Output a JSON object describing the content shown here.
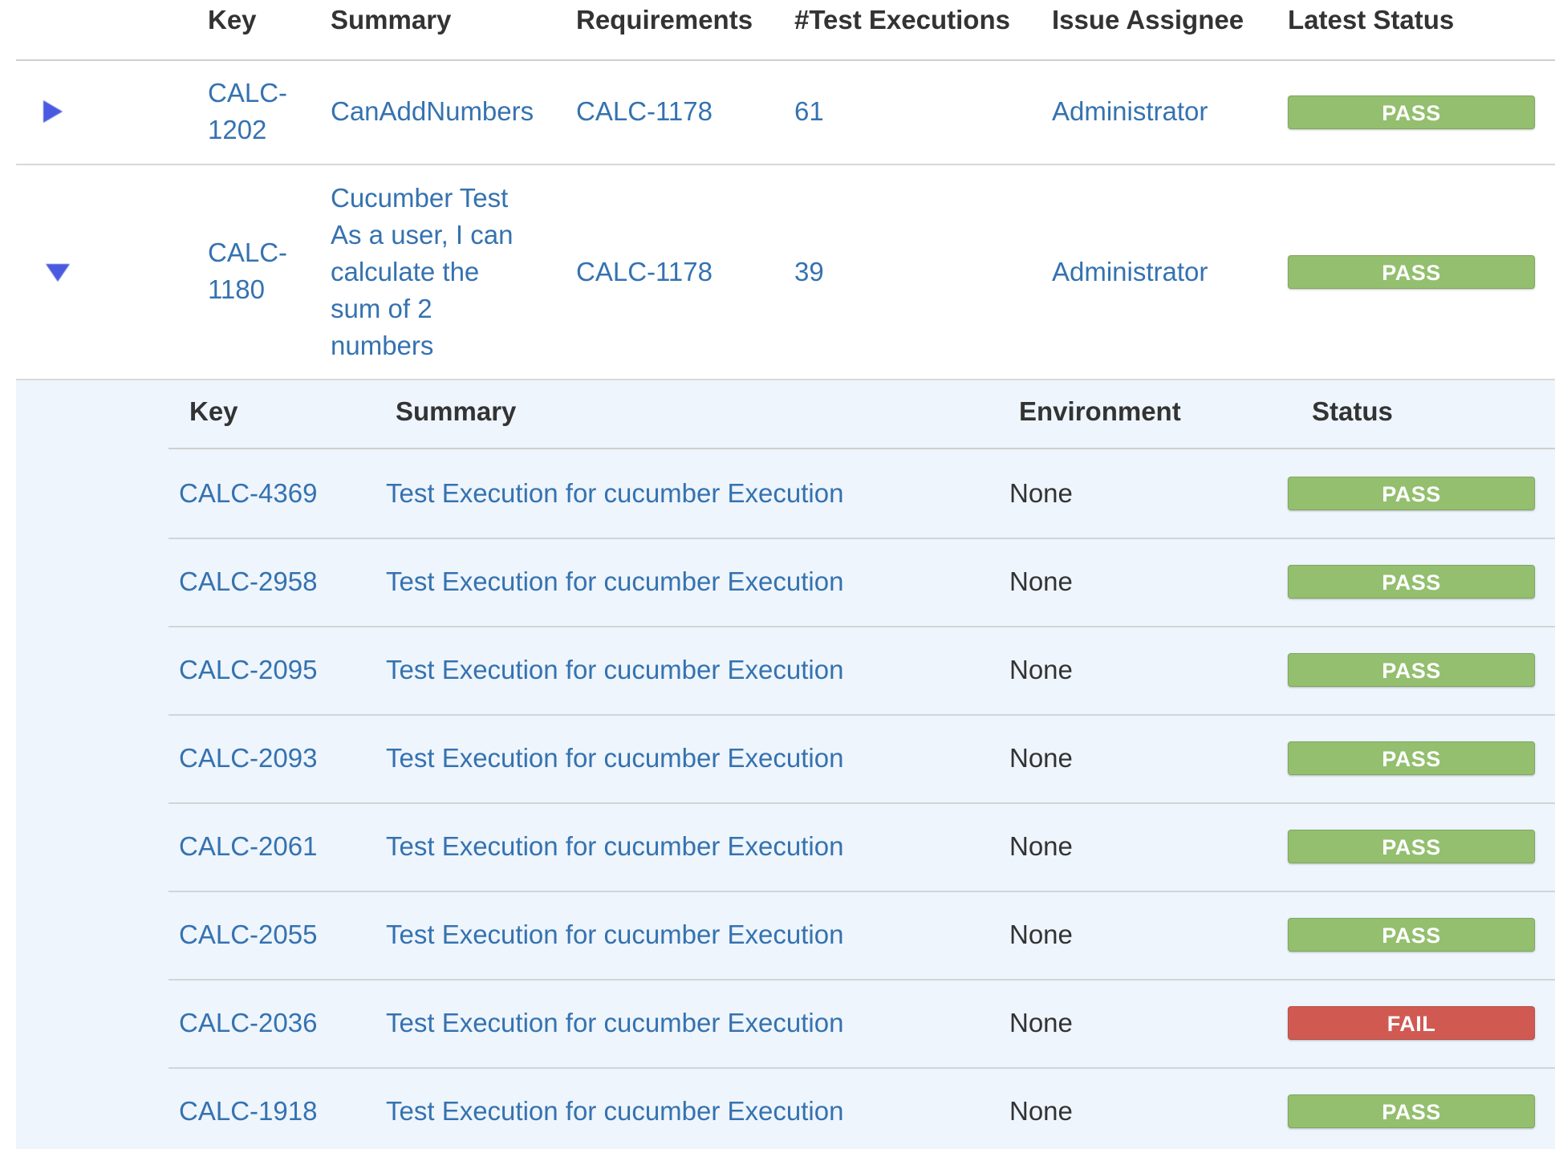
{
  "columns": {
    "key": "Key",
    "summary": "Summary",
    "requirements": "Requirements",
    "test_executions": "#Test Executions",
    "assignee": "Issue Assignee",
    "latest_status": "Latest Status"
  },
  "tests": [
    {
      "expanded": false,
      "key_line1": "CALC-",
      "key_line2": "1202",
      "summary": "CanAddNumbers",
      "requirement": "CALC-1178",
      "executions": "61",
      "assignee": "Administrator",
      "status": "PASS"
    },
    {
      "expanded": true,
      "key_line1": "CALC-",
      "key_line2": "1180",
      "summary_lines": [
        "Cucumber Test",
        "As a user, I can",
        "calculate the",
        "sum of 2",
        "numbers"
      ],
      "requirement": "CALC-1178",
      "executions": "39",
      "assignee": "Administrator",
      "status": "PASS"
    }
  ],
  "executions_table": {
    "columns": {
      "key": "Key",
      "summary": "Summary",
      "environment": "Environment",
      "status": "Status"
    },
    "rows": [
      {
        "key": "CALC-4369",
        "summary": "Test Execution for cucumber Execution",
        "environment": "None",
        "status": "PASS"
      },
      {
        "key": "CALC-2958",
        "summary": "Test Execution for cucumber Execution",
        "environment": "None",
        "status": "PASS"
      },
      {
        "key": "CALC-2095",
        "summary": "Test Execution for cucumber Execution",
        "environment": "None",
        "status": "PASS"
      },
      {
        "key": "CALC-2093",
        "summary": "Test Execution for cucumber Execution",
        "environment": "None",
        "status": "PASS"
      },
      {
        "key": "CALC-2061",
        "summary": "Test Execution for cucumber Execution",
        "environment": "None",
        "status": "PASS"
      },
      {
        "key": "CALC-2055",
        "summary": "Test Execution for cucumber Execution",
        "environment": "None",
        "status": "PASS"
      },
      {
        "key": "CALC-2036",
        "summary": "Test Execution for cucumber Execution",
        "environment": "None",
        "status": "FAIL"
      },
      {
        "key": "CALC-1918",
        "summary": "Test Execution for cucumber Execution",
        "environment": "None",
        "status": "PASS"
      }
    ]
  },
  "colors": {
    "link": "#3572b0",
    "pass": "#93bf6e",
    "fail": "#d05a52",
    "expander": "#4a5ae0",
    "nested_bg": "#eef5fc"
  }
}
